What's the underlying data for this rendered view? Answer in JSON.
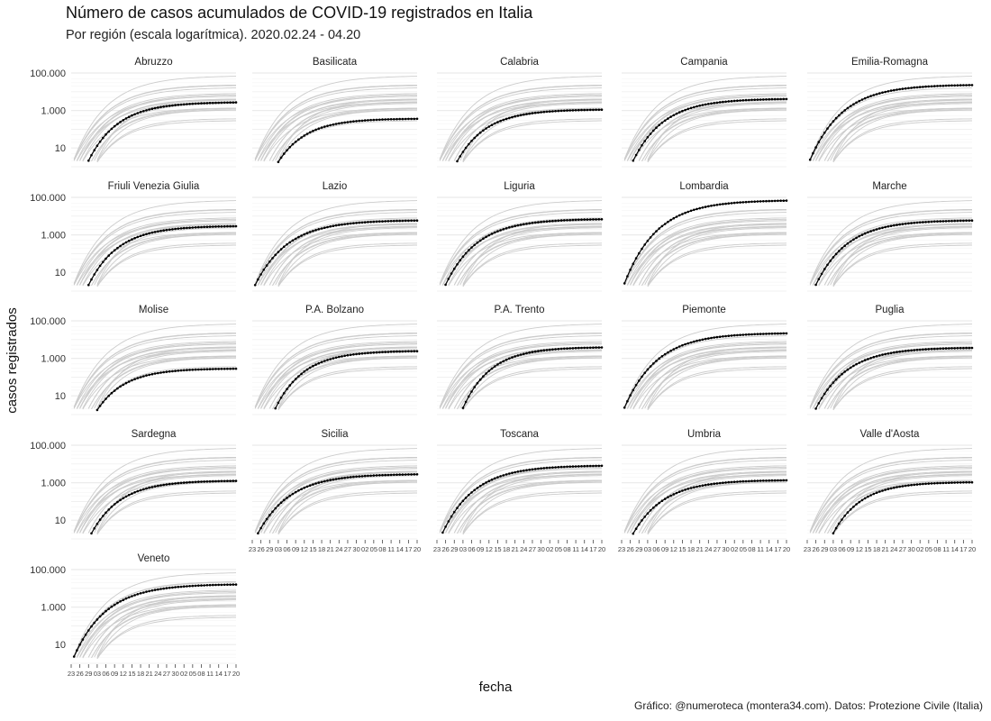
{
  "title": "Número de casos acumulados de COVID-19 registrados en Italia",
  "subtitle": "Por región (escala logarítmica). 2020.02.24 - 04.20",
  "xlabel": "fecha",
  "ylabel": "casos registrados",
  "caption": "Gráfico: @numeroteca (montera34.com). Datos: Protezione Civile (Italia)",
  "colors": {
    "highlight": "#000000",
    "background_lines": "#cccccc",
    "grid": "#ebebeb"
  },
  "chart_data": {
    "type": "line",
    "facet": "small-multiples, 5 columns",
    "y_scale": "log",
    "ylim": [
      1,
      100000
    ],
    "y_ticks": [
      10,
      1000,
      100000
    ],
    "y_tick_labels": [
      "10",
      "1.000",
      "100.000"
    ],
    "x_range": [
      "2020-02-24",
      "2020-04-20"
    ],
    "x_ticks": [
      "2020-02-23",
      "2020-02-26",
      "2020-02-29",
      "2020-03-03",
      "2020-03-06",
      "2020-03-09",
      "2020-03-12",
      "2020-03-15",
      "2020-03-18",
      "2020-03-21",
      "2020-03-24",
      "2020-03-27",
      "2020-03-30",
      "2020-04-02",
      "2020-04-05",
      "2020-04-08",
      "2020-04-11",
      "2020-04-14",
      "2020-04-17",
      "2020-04-20"
    ],
    "x_tick_labels": [
      "23",
      "26",
      "29",
      "03",
      "06",
      "09",
      "12",
      "15",
      "18",
      "21",
      "24",
      "27",
      "30",
      "02",
      "05",
      "08",
      "11",
      "14",
      "17",
      "20"
    ],
    "grid": true,
    "panels": [
      {
        "region": "Abruzzo",
        "start": "2020-02-29",
        "final": 2700
      },
      {
        "region": "Basilicata",
        "start": "2020-03-03",
        "final": 360
      },
      {
        "region": "Calabria",
        "start": "2020-03-01",
        "final": 1100
      },
      {
        "region": "Campania",
        "start": "2020-02-27",
        "final": 4100
      },
      {
        "region": "Emilia-Romagna",
        "start": "2020-02-24",
        "final": 22800
      },
      {
        "region": "Friuli Venezia Giulia",
        "start": "2020-02-29",
        "final": 2900
      },
      {
        "region": "Lazio",
        "start": "2020-02-24",
        "final": 5800
      },
      {
        "region": "Liguria",
        "start": "2020-02-26",
        "final": 6800
      },
      {
        "region": "Lombardia",
        "start": "2020-02-24",
        "final": 67000
      },
      {
        "region": "Marche",
        "start": "2020-02-26",
        "final": 5800
      },
      {
        "region": "Molise",
        "start": "2020-03-03",
        "final": 280
      },
      {
        "region": "P.A. Bolzano",
        "start": "2020-03-02",
        "final": 2400
      },
      {
        "region": "P.A. Trento",
        "start": "2020-03-03",
        "final": 3800
      },
      {
        "region": "Piemonte",
        "start": "2020-02-24",
        "final": 21500
      },
      {
        "region": "Puglia",
        "start": "2020-02-26",
        "final": 3600
      },
      {
        "region": "Sardegna",
        "start": "2020-03-01",
        "final": 1250
      },
      {
        "region": "Sicilia",
        "start": "2020-02-25",
        "final": 2800
      },
      {
        "region": "Toscana",
        "start": "2020-02-25",
        "final": 8000
      },
      {
        "region": "Umbria",
        "start": "2020-02-27",
        "final": 1350
      },
      {
        "region": "Valle d'Aosta",
        "start": "2020-03-03",
        "final": 1050
      },
      {
        "region": "Veneto",
        "start": "2020-02-24",
        "final": 16000
      }
    ]
  }
}
